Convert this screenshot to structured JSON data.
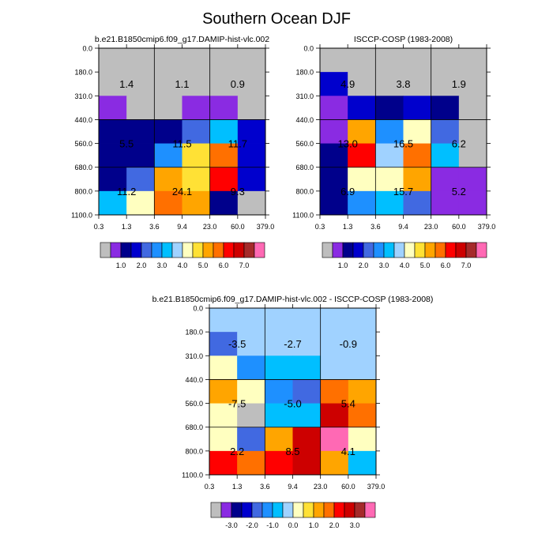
{
  "title": "Southern Ocean DJF",
  "chart_data": [
    {
      "type": "heatmap",
      "title": "b.e21.B1850cmip6.f09_g17.DAMIP-hist-vlc.002",
      "x_ticks": [
        "0.3",
        "1.3",
        "3.6",
        "9.4",
        "23.0",
        "60.0",
        "379.0"
      ],
      "y_ticks": [
        "0.0",
        "180.0",
        "310.0",
        "440.0",
        "560.0",
        "680.0",
        "800.0",
        "1100.0"
      ],
      "cells": [
        [
          "missing",
          "missing",
          "missing",
          "missing",
          "missing",
          "missing"
        ],
        [
          "missing",
          "missing",
          "missing",
          "missing",
          "missing",
          "missing"
        ],
        [
          "purple",
          "missing",
          "missing",
          "purple",
          "purple",
          "missing"
        ],
        [
          "blue1",
          "blue1",
          "blue1",
          "blue3",
          "cyan",
          "blue2"
        ],
        [
          "blue1",
          "blue1",
          "blue4",
          "yellow",
          "orange",
          "blue2"
        ],
        [
          "blue1",
          "blue3",
          "gold",
          "yellow",
          "red",
          "blue2"
        ],
        [
          "cyan",
          "lightyellow",
          "orange",
          "gold",
          "blue1",
          "missing"
        ]
      ],
      "box_labels": [
        {
          "cols": [
            0,
            2
          ],
          "rows": [
            0,
            3
          ],
          "text": "1.4",
          "dy": 0.0
        },
        {
          "cols": [
            2,
            4
          ],
          "rows": [
            0,
            3
          ],
          "text": "1.1",
          "dy": 0.0
        },
        {
          "cols": [
            4,
            6
          ],
          "rows": [
            0,
            3
          ],
          "text": "0.9",
          "dy": 0.0
        },
        {
          "cols": [
            0,
            2
          ],
          "rows": [
            3,
            5
          ],
          "text": "5.5",
          "dy": 0.0
        },
        {
          "cols": [
            2,
            4
          ],
          "rows": [
            3,
            5
          ],
          "text": "11.5",
          "dy": 0.0
        },
        {
          "cols": [
            4,
            6
          ],
          "rows": [
            3,
            5
          ],
          "text": "11.7",
          "dy": 0.0
        },
        {
          "cols": [
            0,
            2
          ],
          "rows": [
            5,
            7
          ],
          "text": "11.2",
          "dy": 0.0
        },
        {
          "cols": [
            2,
            4
          ],
          "rows": [
            5,
            7
          ],
          "text": "24.1",
          "dy": 0.0
        },
        {
          "cols": [
            4,
            6
          ],
          "rows": [
            5,
            7
          ],
          "text": "9.3",
          "dy": 0.0
        }
      ]
    },
    {
      "type": "heatmap",
      "title": "ISCCP-COSP (1983-2008)",
      "x_ticks": [
        "0.3",
        "1.3",
        "3.6",
        "9.4",
        "23.0",
        "60.0",
        "379.0"
      ],
      "y_ticks": [
        "0.0",
        "180.0",
        "310.0",
        "440.0",
        "560.0",
        "680.0",
        "800.0",
        "1100.0"
      ],
      "cells": [
        [
          "missing",
          "missing",
          "missing",
          "missing",
          "missing",
          "missing"
        ],
        [
          "blue2",
          "missing",
          "missing",
          "missing",
          "missing",
          "missing"
        ],
        [
          "purple",
          "blue2",
          "blue1",
          "blue2",
          "blue1",
          "missing"
        ],
        [
          "purple",
          "gold",
          "blue4",
          "lightyellow",
          "blue3",
          "missing"
        ],
        [
          "blue1",
          "red",
          "lightblue",
          "orange",
          "cyan",
          "missing"
        ],
        [
          "blue1",
          "lightyellow",
          "lightyellow",
          "gold",
          "purple",
          "purple"
        ],
        [
          "blue1",
          "blue4",
          "cyan",
          "blue3",
          "purple",
          "purple"
        ]
      ],
      "box_labels": [
        {
          "cols": [
            0,
            2
          ],
          "rows": [
            0,
            3
          ],
          "text": "4.9",
          "dy": 0.0
        },
        {
          "cols": [
            2,
            4
          ],
          "rows": [
            0,
            3
          ],
          "text": "3.8",
          "dy": 0.0
        },
        {
          "cols": [
            4,
            6
          ],
          "rows": [
            0,
            3
          ],
          "text": "1.9",
          "dy": 0.0
        },
        {
          "cols": [
            0,
            2
          ],
          "rows": [
            3,
            5
          ],
          "text": "13.0",
          "dy": 0.0
        },
        {
          "cols": [
            2,
            4
          ],
          "rows": [
            3,
            5
          ],
          "text": "16.5",
          "dy": 0.0
        },
        {
          "cols": [
            4,
            6
          ],
          "rows": [
            3,
            5
          ],
          "text": "6.2",
          "dy": 0.0
        },
        {
          "cols": [
            0,
            2
          ],
          "rows": [
            5,
            7
          ],
          "text": "6.9",
          "dy": 0.0
        },
        {
          "cols": [
            2,
            4
          ],
          "rows": [
            5,
            7
          ],
          "text": "15.7",
          "dy": 0.0
        },
        {
          "cols": [
            4,
            6
          ],
          "rows": [
            5,
            7
          ],
          "text": "5.2",
          "dy": 0.0
        }
      ]
    },
    {
      "type": "heatmap",
      "title": "b.e21.B1850cmip6.f09_g17.DAMIP-hist-vlc.002 - ISCCP-COSP (1983-2008)",
      "x_ticks": [
        "0.3",
        "1.3",
        "3.6",
        "9.4",
        "23.0",
        "60.0",
        "379.0"
      ],
      "y_ticks": [
        "0.0",
        "180.0",
        "310.0",
        "440.0",
        "560.0",
        "680.0",
        "800.0",
        "1100.0"
      ],
      "cells": [
        [
          "lightblue",
          "lightblue",
          "lightblue",
          "lightblue",
          "lightblue",
          "lightblue"
        ],
        [
          "blue3",
          "lightblue",
          "lightblue",
          "lightblue",
          "lightblue",
          "lightblue"
        ],
        [
          "lightyellow",
          "blue4",
          "cyan",
          "cyan",
          "lightblue",
          "lightblue"
        ],
        [
          "gold",
          "lightyellow",
          "blue4",
          "blue3",
          "orange",
          "gold"
        ],
        [
          "lightyellow",
          "missing",
          "cyan",
          "cyan",
          "darkred",
          "orange"
        ],
        [
          "lightyellow",
          "blue3",
          "gold",
          "darkred",
          "pink",
          "lightyellow"
        ],
        [
          "red",
          "orange",
          "red",
          "darkred",
          "gold",
          "cyan"
        ]
      ],
      "box_labels": [
        {
          "cols": [
            0,
            2
          ],
          "rows": [
            0,
            3
          ],
          "text": "-3.5",
          "dy": 0.0
        },
        {
          "cols": [
            2,
            4
          ],
          "rows": [
            0,
            3
          ],
          "text": "-2.7",
          "dy": 0.0
        },
        {
          "cols": [
            4,
            6
          ],
          "rows": [
            0,
            3
          ],
          "text": "-0.9",
          "dy": 0.0
        },
        {
          "cols": [
            0,
            2
          ],
          "rows": [
            3,
            5
          ],
          "text": "-7.5",
          "dy": 0.0
        },
        {
          "cols": [
            2,
            4
          ],
          "rows": [
            3,
            5
          ],
          "text": "-5.0",
          "dy": 0.0
        },
        {
          "cols": [
            4,
            6
          ],
          "rows": [
            3,
            5
          ],
          "text": "5.4",
          "dy": 0.0
        },
        {
          "cols": [
            0,
            2
          ],
          "rows": [
            5,
            7
          ],
          "text": "2.2",
          "dy": 0.0
        },
        {
          "cols": [
            2,
            4
          ],
          "rows": [
            5,
            7
          ],
          "text": "8.5",
          "dy": 0.0
        },
        {
          "cols": [
            4,
            6
          ],
          "rows": [
            5,
            7
          ],
          "text": "4.1",
          "dy": 0.0
        }
      ]
    }
  ],
  "colorbars": [
    {
      "colors": [
        "#bebebe",
        "#8a2be2",
        "#00008b",
        "#0000cd",
        "#4169e1",
        "#1e90ff",
        "#00bfff",
        "#a0d2ff",
        "#ffffc0",
        "#ffe135",
        "#ffa500",
        "#ff7000",
        "#ff0000",
        "#cd0000",
        "#a52a2a",
        "#ff69b4"
      ],
      "labels": [
        {
          "after_box": 2,
          "text": "1.0"
        },
        {
          "after_box": 4,
          "text": "2.0"
        },
        {
          "after_box": 6,
          "text": "3.0"
        },
        {
          "after_box": 8,
          "text": "4.0"
        },
        {
          "after_box": 10,
          "text": "5.0"
        },
        {
          "after_box": 12,
          "text": "6.0"
        },
        {
          "after_box": 14,
          "text": "7.0"
        }
      ]
    },
    {
      "colors": [
        "#bebebe",
        "#8a2be2",
        "#00008b",
        "#0000cd",
        "#4169e1",
        "#1e90ff",
        "#00bfff",
        "#a0d2ff",
        "#ffffc0",
        "#ffe135",
        "#ffa500",
        "#ff7000",
        "#ff0000",
        "#cd0000",
        "#a52a2a",
        "#ff69b4"
      ],
      "labels": [
        {
          "after_box": 2,
          "text": "1.0"
        },
        {
          "after_box": 4,
          "text": "2.0"
        },
        {
          "after_box": 6,
          "text": "3.0"
        },
        {
          "after_box": 8,
          "text": "4.0"
        },
        {
          "after_box": 10,
          "text": "5.0"
        },
        {
          "after_box": 12,
          "text": "6.0"
        },
        {
          "after_box": 14,
          "text": "7.0"
        }
      ]
    },
    {
      "colors": [
        "#bebebe",
        "#8a2be2",
        "#00008b",
        "#0000cd",
        "#4169e1",
        "#1e90ff",
        "#00bfff",
        "#a0d2ff",
        "#ffffc0",
        "#ffe135",
        "#ffa500",
        "#ff7000",
        "#ff0000",
        "#cd0000",
        "#a52a2a",
        "#ff69b4"
      ],
      "labels": [
        {
          "after_box": 2,
          "text": "-3.0"
        },
        {
          "after_box": 4,
          "text": "-2.0"
        },
        {
          "after_box": 6,
          "text": "-1.0"
        },
        {
          "after_box": 8,
          "text": "0.0"
        },
        {
          "after_box": 10,
          "text": "1.0"
        },
        {
          "after_box": 12,
          "text": "2.0"
        },
        {
          "after_box": 14,
          "text": "3.0"
        }
      ]
    }
  ],
  "palette": {
    "missing": "#bebebe",
    "purple": "#8a2be2",
    "blue1": "#00008b",
    "blue2": "#0000cd",
    "blue3": "#4169e1",
    "blue4": "#1e90ff",
    "cyan": "#00bfff",
    "lightblue": "#a0d2ff",
    "lightyellow": "#ffffc0",
    "yellow": "#ffe135",
    "gold": "#ffa500",
    "orange": "#ff7000",
    "red": "#ff0000",
    "darkred": "#cd0000",
    "brown": "#a52a2a",
    "pink": "#ff69b4"
  }
}
